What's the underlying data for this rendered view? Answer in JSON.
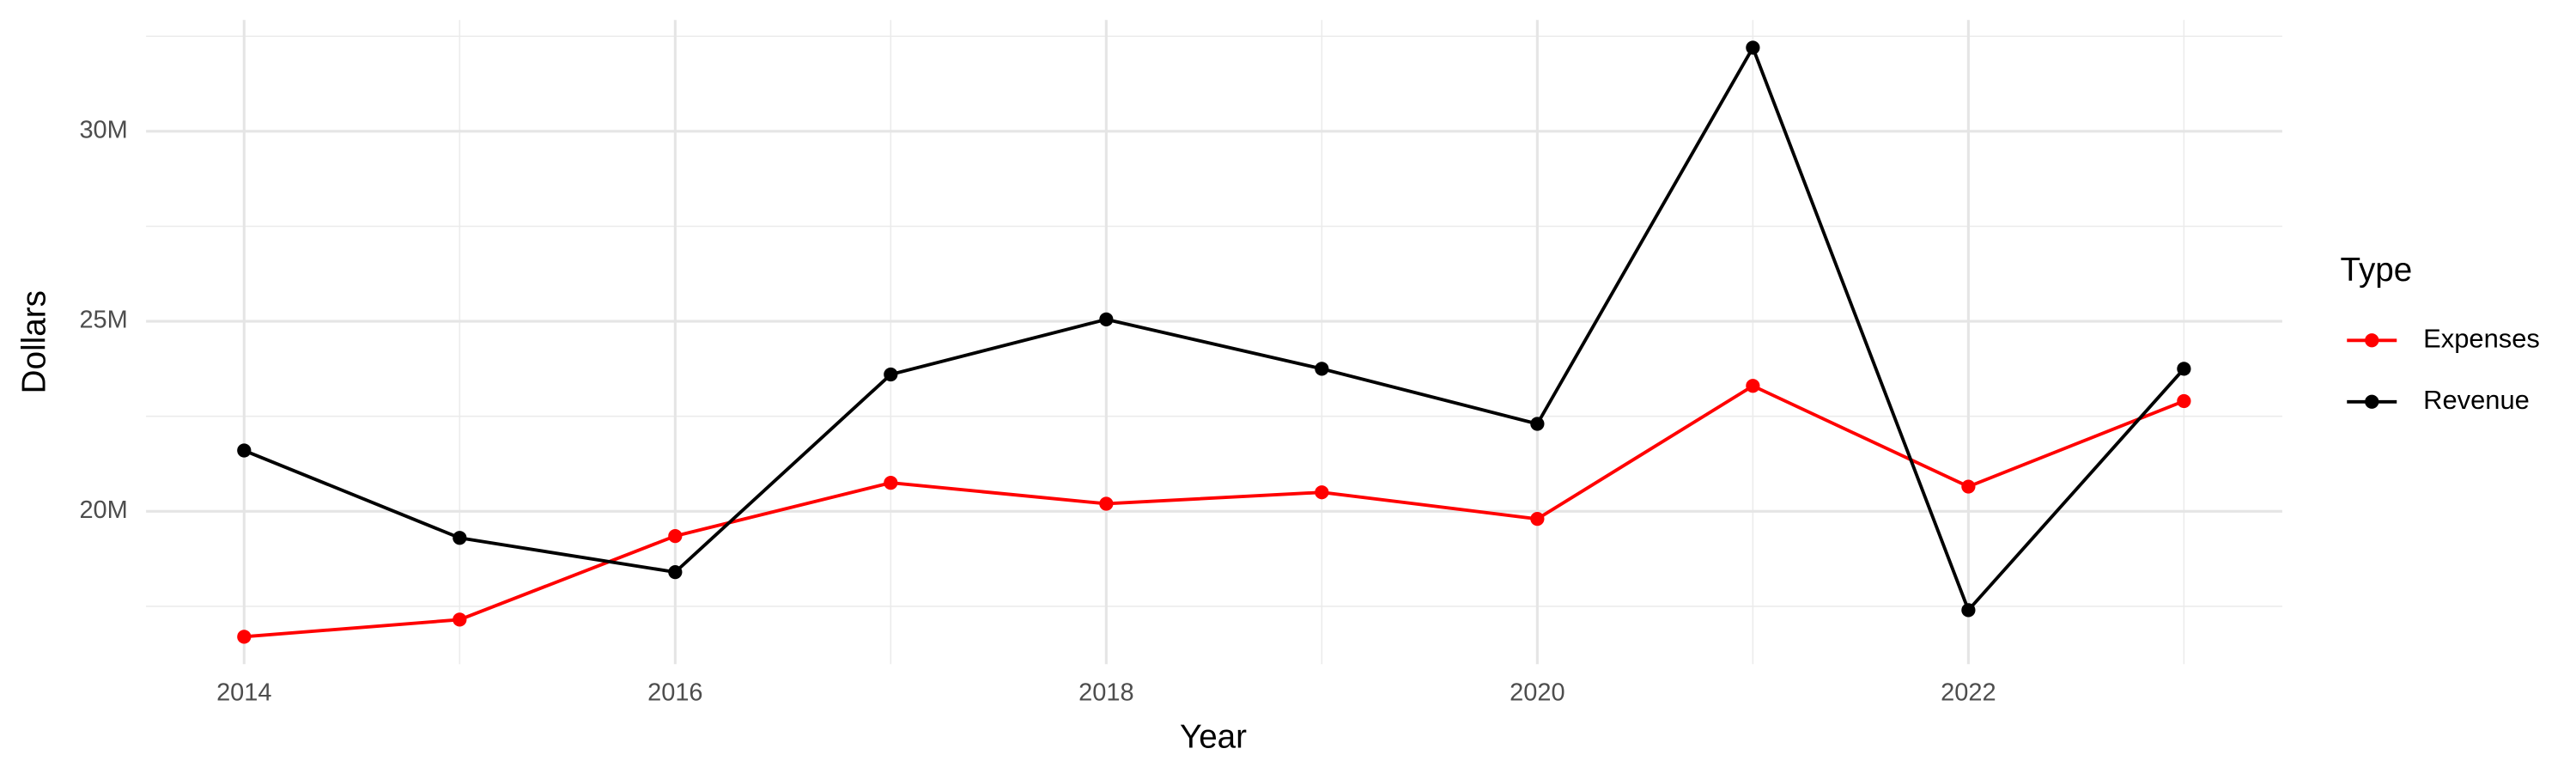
{
  "chart_data": {
    "type": "line",
    "x_label": "Year",
    "y_label": "Dollars",
    "legend_title": "Type",
    "legend_position": "right",
    "grid": true,
    "x": [
      2014,
      2015,
      2016,
      2017,
      2018,
      2019,
      2020,
      2021,
      2022,
      2023
    ],
    "series": [
      {
        "name": "Expenses",
        "color": "#ff0000",
        "values": [
          16700000,
          17150000,
          19350000,
          20750000,
          20200000,
          20500000,
          19800000,
          23300000,
          20650000,
          22900000
        ]
      },
      {
        "name": "Revenue",
        "color": "#000000",
        "values": [
          21600000,
          19300000,
          18400000,
          23600000,
          25050000,
          23750000,
          22300000,
          32200000,
          17400000,
          23750000
        ]
      }
    ],
    "xlim": [
      2013.545,
      2023.456
    ],
    "xticks": [
      2014,
      2016,
      2018,
      2020,
      2022
    ],
    "ylim": [
      15980000,
      32930000
    ],
    "yticks": [
      {
        "value": 20000000,
        "label": "20M"
      },
      {
        "value": 25000000,
        "label": "25M"
      },
      {
        "value": 30000000,
        "label": "30M"
      }
    ]
  }
}
